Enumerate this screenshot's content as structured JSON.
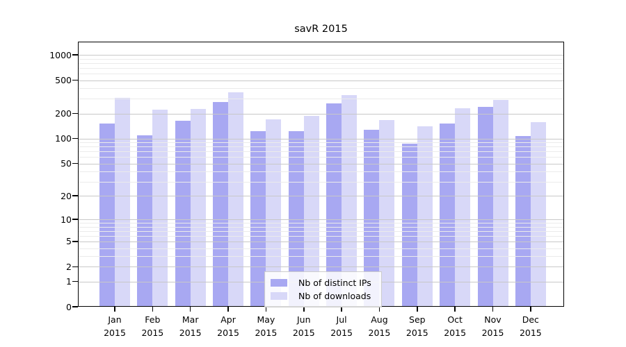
{
  "figure": {
    "title": "savR 2015"
  },
  "chart_data": {
    "type": "bar",
    "title": "savR 2015",
    "categories": [
      "Jan",
      "Feb",
      "Mar",
      "Apr",
      "May",
      "Jun",
      "Jul",
      "Aug",
      "Sep",
      "Oct",
      "Nov",
      "Dec"
    ],
    "category_year_suffix": "2015",
    "series": [
      {
        "name": "Nb of distinct IPs",
        "color": "#a8a8f2",
        "values": [
          153,
          110,
          163,
          276,
          122,
          123,
          264,
          128,
          87,
          151,
          239,
          108
        ]
      },
      {
        "name": "Nb of downloads",
        "color": "#d8d8f8",
        "values": [
          308,
          221,
          228,
          357,
          171,
          188,
          331,
          168,
          141,
          232,
          289,
          158
        ]
      }
    ],
    "xlabel": "",
    "ylabel": "",
    "yscale": "log1p",
    "yticks": [
      0,
      1,
      2,
      5,
      10,
      20,
      50,
      100,
      200,
      500,
      1000
    ],
    "minor_yticks": [
      3,
      4,
      6,
      7,
      8,
      9,
      30,
      40,
      60,
      70,
      80,
      90,
      300,
      400,
      600,
      700,
      800,
      900
    ],
    "ylim": [
      0,
      1400
    ],
    "grid": true,
    "legend_position": "bottom-center"
  },
  "colors": {
    "background": "#ffffff",
    "frame": "#000000",
    "text": "#000000",
    "major_grid": "#c8c8c8",
    "minor_grid": "#ebebeb",
    "legend_border": "#cccccc",
    "bar_distinct_ips": "#a8a8f2",
    "bar_downloads": "#d8d8f8"
  }
}
